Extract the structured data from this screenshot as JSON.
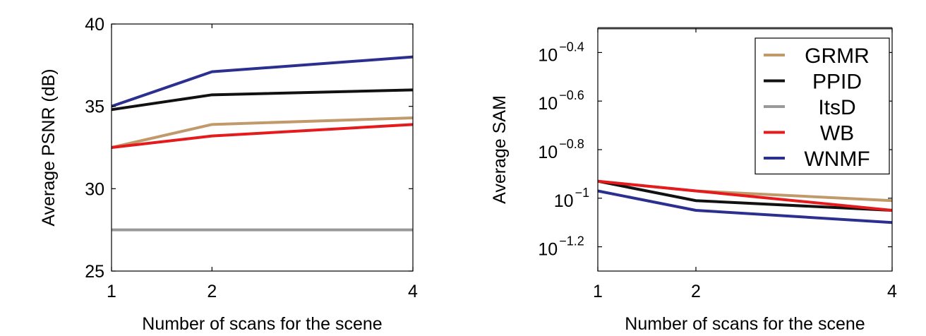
{
  "chart_data": [
    {
      "type": "line",
      "x": [
        1,
        2,
        4
      ],
      "x_tick_labels": [
        "1",
        "2",
        "4"
      ],
      "xlabel": "Number of scans for the scene",
      "ylabel": "Average PSNR (dB)",
      "ylim": [
        25,
        40
      ],
      "y_ticks": [
        25,
        30,
        35,
        40
      ],
      "y_tick_labels": [
        "25",
        "30",
        "35",
        "40"
      ],
      "grid": false,
      "series": [
        {
          "name": "GRMR",
          "color": "#c09a6b",
          "values": [
            32.5,
            33.9,
            34.3
          ]
        },
        {
          "name": "PPID",
          "color": "#111111",
          "values": [
            34.8,
            35.7,
            36.0
          ]
        },
        {
          "name": "ItsD",
          "color": "#999999",
          "values": [
            27.5,
            27.5,
            27.5
          ]
        },
        {
          "name": "WB",
          "color": "#e41a1c",
          "values": [
            32.5,
            33.2,
            33.9
          ]
        },
        {
          "name": "WNMF",
          "color": "#2b2f8f",
          "values": [
            35.0,
            37.1,
            38.0
          ]
        }
      ]
    },
    {
      "type": "line",
      "x": [
        1,
        2,
        4
      ],
      "x_tick_labels": [
        "1",
        "2",
        "4"
      ],
      "xlabel": "Number of scans for the scene",
      "ylabel": "Average SAM",
      "y_scale": "log10",
      "ylim_log10": [
        -1.3,
        -0.3
      ],
      "y_ticks_log10": [
        -1.2,
        -1,
        -0.8,
        -0.6,
        -0.4
      ],
      "y_tick_exponents": [
        "−1.2",
        "−1",
        "−0.8",
        "−0.6",
        "−0.4"
      ],
      "y_tick_base": "10",
      "grid": false,
      "legend": {
        "position": "top-right",
        "entries": [
          "GRMR",
          "PPID",
          "ItsD",
          "WB",
          "WNMF"
        ]
      },
      "series": [
        {
          "name": "GRMR",
          "color": "#c09a6b",
          "values_log10": [
            -0.93,
            -0.97,
            -1.01
          ]
        },
        {
          "name": "PPID",
          "color": "#111111",
          "values_log10": [
            -0.93,
            -1.01,
            -1.05
          ]
        },
        {
          "name": "ItsD",
          "color": "#999999",
          "values_log10": [
            -0.3,
            -0.3,
            -0.3
          ]
        },
        {
          "name": "WB",
          "color": "#e41a1c",
          "values_log10": [
            -0.93,
            -0.97,
            -1.05
          ]
        },
        {
          "name": "WNMF",
          "color": "#2b2f8f",
          "values_log10": [
            -0.97,
            -1.05,
            -1.1
          ]
        }
      ]
    }
  ]
}
